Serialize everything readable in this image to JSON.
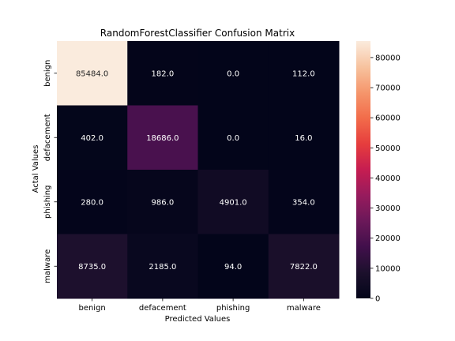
{
  "chart_data": {
    "type": "heatmap",
    "title": "RandomForestClassifier Confusion Matrix",
    "xlabel": "Predicted Values",
    "ylabel": "Actal Values",
    "x_categories": [
      "benign",
      "defacement",
      "phishing",
      "malware"
    ],
    "y_categories": [
      "benign",
      "defacement",
      "phishing",
      "malware"
    ],
    "values": [
      [
        85484.0,
        182.0,
        0.0,
        112.0
      ],
      [
        402.0,
        18686.0,
        0.0,
        16.0
      ],
      [
        280.0,
        986.0,
        4901.0,
        354.0
      ],
      [
        8735.0,
        2185.0,
        94.0,
        7822.0
      ]
    ],
    "colormap": "rocket",
    "colorbar": {
      "min": 0,
      "max": 85484,
      "ticks": [
        0,
        10000,
        20000,
        30000,
        40000,
        50000,
        60000,
        70000,
        80000
      ]
    },
    "annot_format": ".1f"
  }
}
